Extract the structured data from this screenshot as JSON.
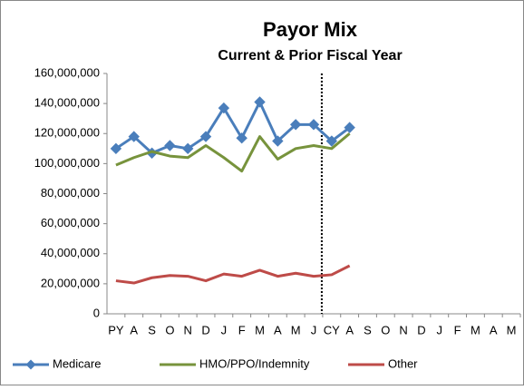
{
  "chart_data": {
    "type": "line",
    "title": "Payor Mix",
    "subtitle": "Current & Prior Fiscal Year",
    "categories": [
      "PY",
      "A",
      "S",
      "O",
      "N",
      "D",
      "J",
      "F",
      "M",
      "A",
      "M",
      "J",
      "CY",
      "A",
      "S",
      "O",
      "N",
      "D",
      "J",
      "F",
      "M",
      "A",
      "M"
    ],
    "series": [
      {
        "name": "Medicare",
        "color": "#4a7ebb",
        "marker": "diamond",
        "values": [
          110000000,
          118000000,
          107000000,
          112000000,
          110000000,
          118000000,
          137000000,
          117000000,
          141000000,
          115000000,
          126000000,
          126000000,
          115000000,
          124000000,
          null,
          null,
          null,
          null,
          null,
          null,
          null,
          null,
          null
        ]
      },
      {
        "name": "HMO/PPO/Indemnity",
        "color": "#77933c",
        "values": [
          99000000,
          104000000,
          108000000,
          105000000,
          104000000,
          112000000,
          104000000,
          95000000,
          118000000,
          103000000,
          110000000,
          112000000,
          110000000,
          120000000,
          null,
          null,
          null,
          null,
          null,
          null,
          null,
          null,
          null
        ]
      },
      {
        "name": "Other",
        "color": "#be4b48",
        "values": [
          22000000,
          20500000,
          24000000,
          25500000,
          25000000,
          22000000,
          26500000,
          25000000,
          29000000,
          25000000,
          27000000,
          25000000,
          26000000,
          32000000,
          null,
          null,
          null,
          null,
          null,
          null,
          null,
          null,
          null
        ]
      }
    ],
    "ylim": [
      0,
      160000000
    ],
    "yticks": [
      0,
      {
        "value": 20000000,
        "label": "20,000,000"
      },
      {
        "value": 40000000,
        "label": "40,000,000"
      },
      {
        "value": 60000000,
        "label": "60,000,000"
      },
      {
        "value": 80000000,
        "label": "80,000,000"
      },
      {
        "value": 100000000,
        "label": "100,000,000"
      },
      {
        "value": 120000000,
        "label": "120,000,000"
      },
      {
        "value": 140000000,
        "label": "140,000,000"
      },
      {
        "value": 160000000,
        "label": "160,000,000"
      }
    ],
    "grid": false,
    "legend": "bottom"
  }
}
